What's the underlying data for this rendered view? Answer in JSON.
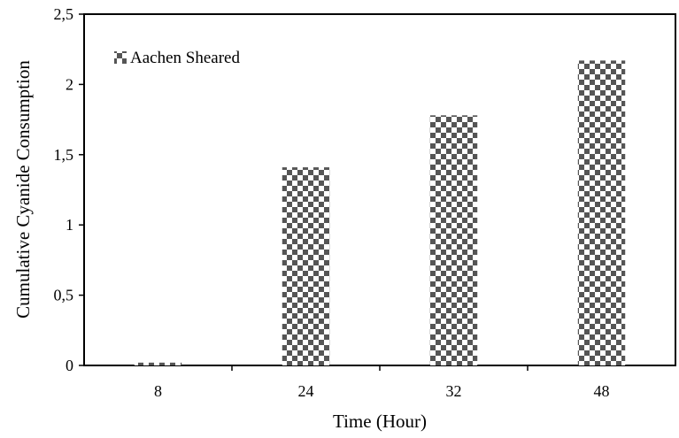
{
  "chart_data": {
    "type": "bar",
    "categories": [
      "8",
      "24",
      "32",
      "48"
    ],
    "series": [
      {
        "name": "Aachen Sheared",
        "values": [
          0.02,
          1.41,
          1.78,
          2.17
        ]
      }
    ],
    "xlabel": "Time (Hour)",
    "ylabel": "Cumulative Cyanide Consumption",
    "ylim": [
      0,
      2.5
    ],
    "yticks": [
      0,
      0.5,
      1,
      1.5,
      2,
      2.5
    ],
    "ytick_labels": [
      "0",
      "0,5",
      "1",
      "1,5",
      "2",
      "2,5"
    ],
    "grid": false,
    "legend": "top-left",
    "bar_pattern": "checkerboard",
    "colors": {
      "bar_dark": "#555555",
      "bar_light": "#ffffff",
      "axis": "#000000"
    }
  }
}
